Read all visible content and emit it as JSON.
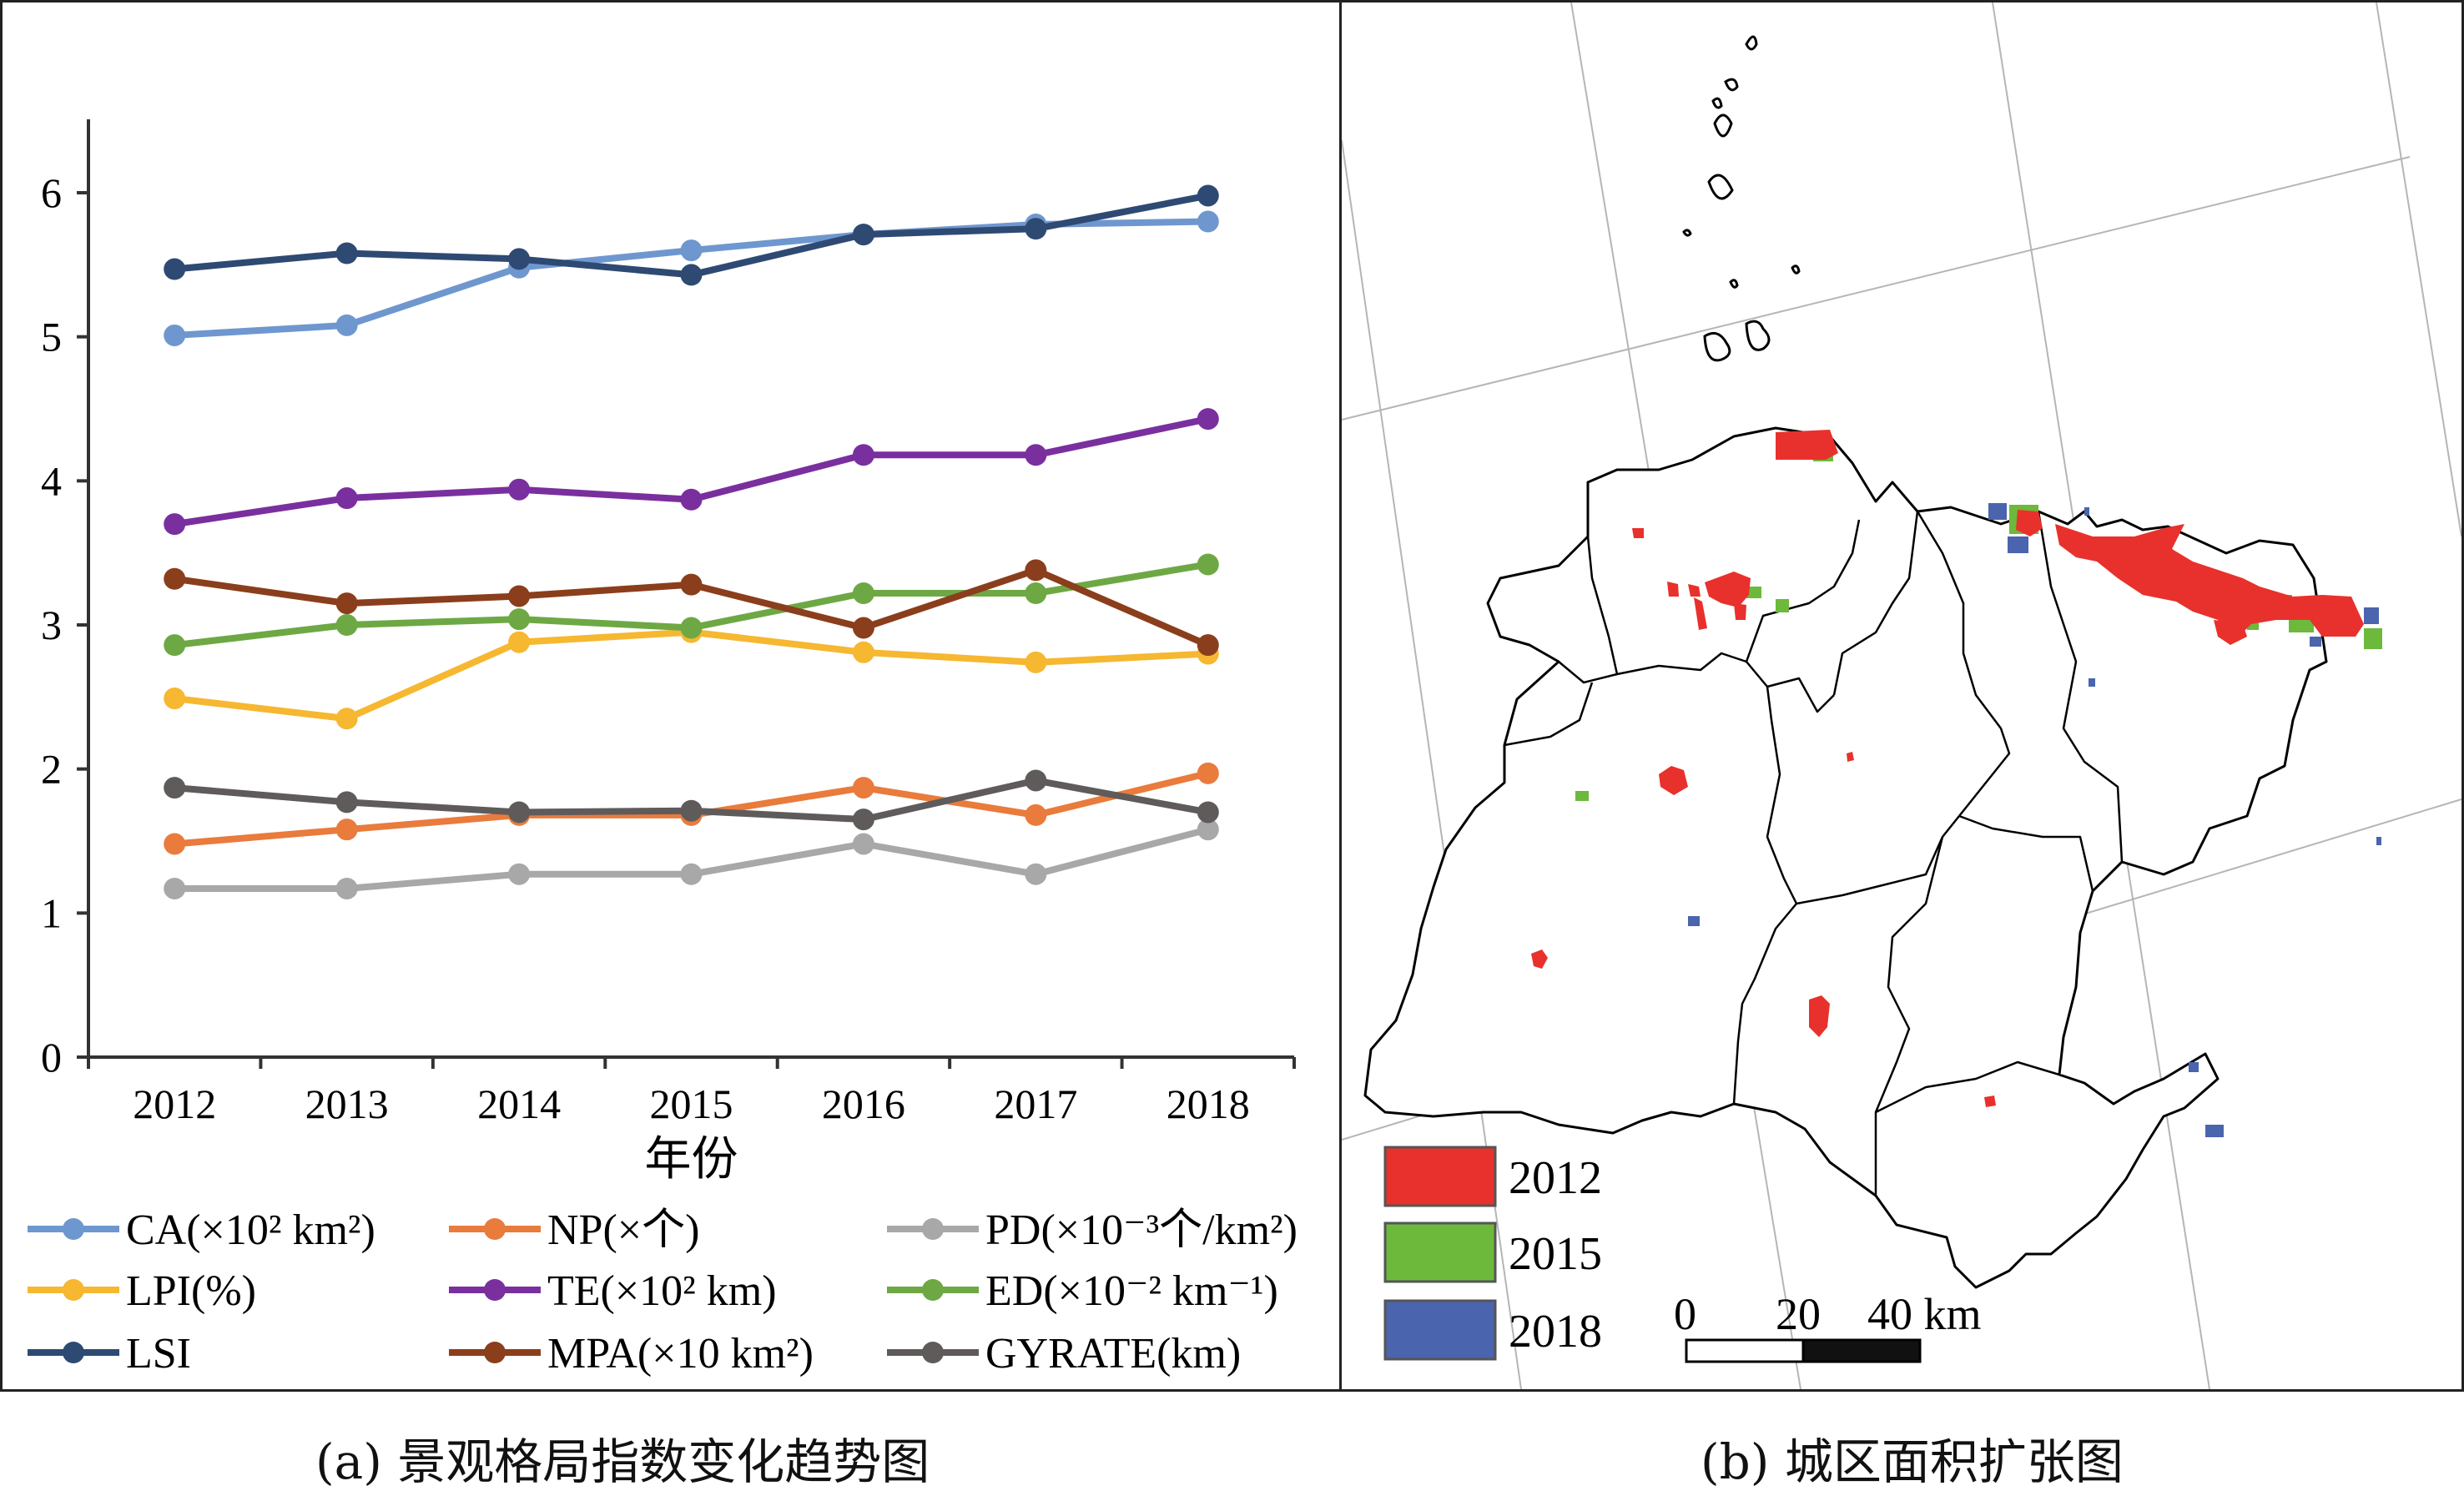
{
  "chart_data": [
    {
      "type": "line",
      "xlabel": "年份",
      "categories": [
        "2012",
        "2013",
        "2014",
        "2015",
        "2016",
        "2017",
        "2018"
      ],
      "ylim": [
        0,
        6.5
      ],
      "yticks": [
        "0",
        "1",
        "2",
        "3",
        "4",
        "5",
        "6"
      ],
      "legend_position": "bottom",
      "series": [
        {
          "name": "CA(×10² km²)",
          "color": "#6f97cf",
          "values": [
            5.01,
            5.08,
            5.48,
            5.6,
            5.71,
            5.78,
            5.8
          ]
        },
        {
          "name": "NP(×个)",
          "color": "#e97b3c",
          "values": [
            1.48,
            1.58,
            1.68,
            1.68,
            1.87,
            1.68,
            1.97
          ]
        },
        {
          "name": "PD(×10⁻³个/km²)",
          "color": "#a8a8a8",
          "values": [
            1.17,
            1.17,
            1.27,
            1.27,
            1.48,
            1.27,
            1.58
          ]
        },
        {
          "name": "LPI(%)",
          "color": "#f6b731",
          "values": [
            2.49,
            2.35,
            2.88,
            2.95,
            2.81,
            2.74,
            2.8
          ]
        },
        {
          "name": "TE(×10² km)",
          "color": "#7a2f9f",
          "values": [
            3.7,
            3.88,
            3.94,
            3.87,
            4.18,
            4.18,
            4.43
          ]
        },
        {
          "name": "ED(×10⁻² km⁻¹)",
          "color": "#6ea844",
          "values": [
            2.86,
            3.0,
            3.04,
            2.98,
            3.22,
            3.22,
            3.42
          ]
        },
        {
          "name": "LSI",
          "color": "#2e4a73",
          "values": [
            5.47,
            5.58,
            5.54,
            5.43,
            5.71,
            5.75,
            5.98
          ]
        },
        {
          "name": "MPA(×10 km²)",
          "color": "#8b3e1c",
          "values": [
            3.32,
            3.15,
            3.2,
            3.28,
            2.98,
            3.38,
            2.86
          ]
        },
        {
          "name": "GYRATE(km)",
          "color": "#5f5b5b",
          "values": [
            1.87,
            1.77,
            1.7,
            1.71,
            1.65,
            1.92,
            1.7
          ]
        }
      ]
    }
  ],
  "map": {
    "legend": [
      {
        "label": "2012",
        "color": "#e8312c"
      },
      {
        "label": "2015",
        "color": "#6cb93b"
      },
      {
        "label": "2018",
        "color": "#4a64ad"
      }
    ],
    "scale": {
      "labels": [
        "0",
        "20",
        "40 km"
      ]
    }
  },
  "captions": {
    "a": "(a) 景观格局指数变化趋势图",
    "b": "(b) 城区面积扩张图"
  }
}
